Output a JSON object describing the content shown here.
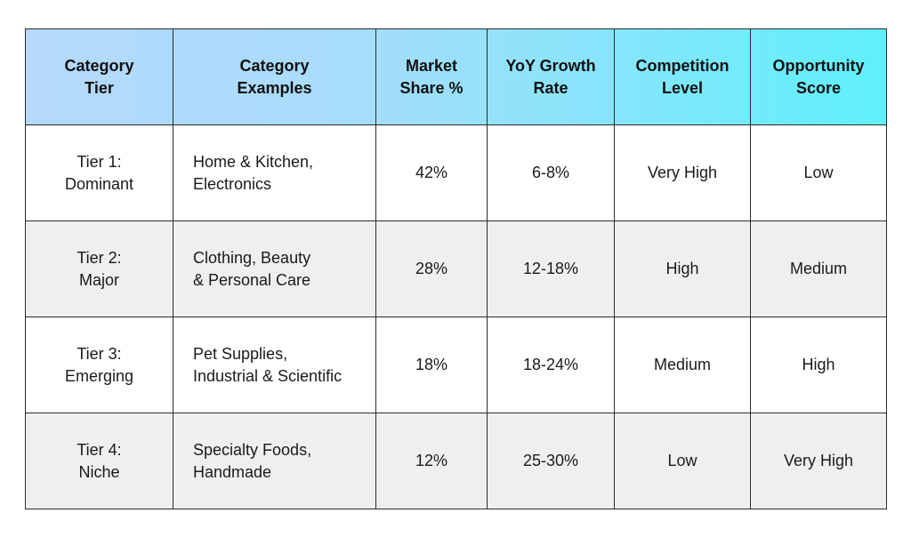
{
  "table": {
    "headers": [
      "Category\nTier",
      "Category\nExamples",
      "Market\nShare %",
      "YoY Growth\nRate",
      "Competition\nLevel",
      "Opportunity\nScore"
    ],
    "rows": [
      {
        "tier": "Tier 1:\nDominant",
        "examples": "Home & Kitchen,\nElectronics",
        "market_share": "42%",
        "growth": "6-8%",
        "competition": "Very High",
        "opportunity": "Low"
      },
      {
        "tier": "Tier 2:\nMajor",
        "examples": "Clothing, Beauty\n& Personal Care",
        "market_share": "28%",
        "growth": "12-18%",
        "competition": "High",
        "opportunity": "Medium"
      },
      {
        "tier": "Tier 3:\nEmerging",
        "examples": "Pet Supplies,\nIndustrial & Scientific",
        "market_share": "18%",
        "growth": "18-24%",
        "competition": "Medium",
        "opportunity": "High"
      },
      {
        "tier": "Tier 4:\nNiche",
        "examples": "Specialty Foods,\nHandmade",
        "market_share": "12%",
        "growth": "25-30%",
        "competition": "Low",
        "opportunity": "Very High"
      }
    ]
  },
  "colors": {
    "header_gradient_start": "#b5d9fb",
    "header_gradient_end": "#5ff0fb",
    "row_even": "#efefef",
    "row_odd": "#ffffff",
    "border": "#2b2b2b"
  }
}
